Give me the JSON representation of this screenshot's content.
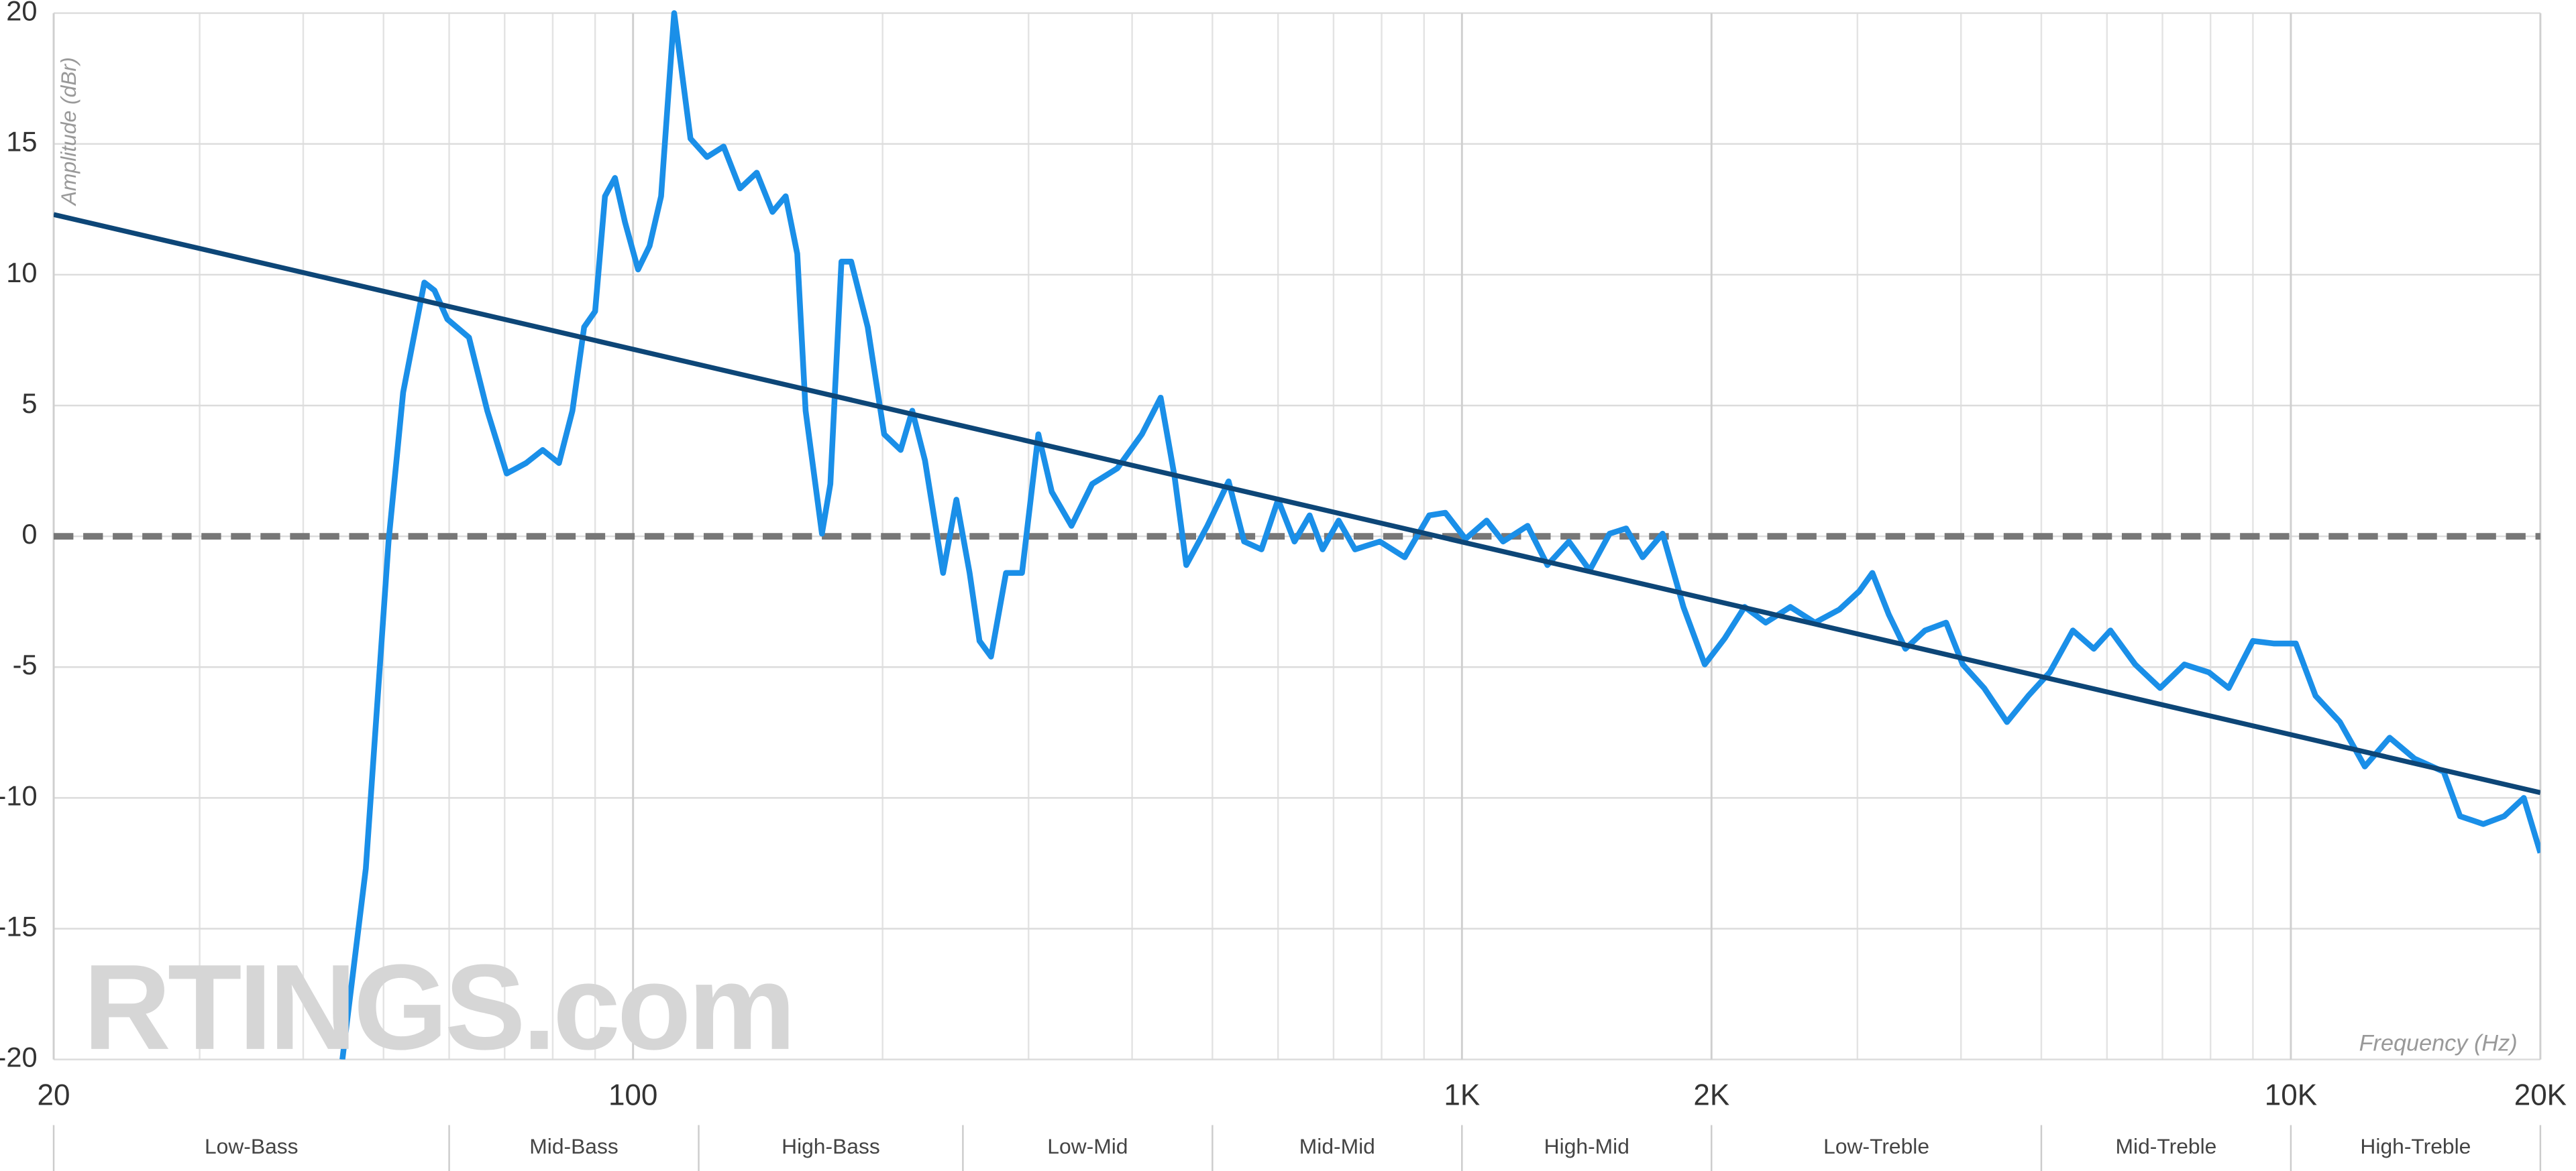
{
  "chart_data": {
    "type": "line",
    "y_label": "Amplitude (dBr)",
    "x_label": "Frequency (Hz)",
    "watermark": "RTINGS.com",
    "xscale": "log",
    "xlim": [
      20,
      20000
    ],
    "ylim": [
      -20,
      20
    ],
    "yticks": [
      -20,
      -15,
      -10,
      -5,
      0,
      5,
      10,
      15,
      20
    ],
    "xticks": [
      20,
      100,
      {
        "value": 1000,
        "label": "1K"
      },
      {
        "value": 2000,
        "label": "2K"
      },
      {
        "value": 10000,
        "label": "10K"
      },
      {
        "value": 20000,
        "label": "20K"
      }
    ],
    "xgrid_minor": [
      30,
      40,
      50,
      60,
      70,
      80,
      90,
      200,
      300,
      400,
      500,
      600,
      700,
      800,
      900,
      3000,
      4000,
      5000,
      6000,
      7000,
      8000,
      9000
    ],
    "grid": true,
    "reference_line": {
      "value": 0,
      "color": "#777777"
    },
    "bands": {
      "edges": [
        20,
        60,
        120,
        250,
        500,
        1000,
        2000,
        5000,
        10000,
        20000
      ],
      "labels": [
        "Low-Bass",
        "Mid-Bass",
        "High-Bass",
        "Low-Mid",
        "Mid-Mid",
        "High-Mid",
        "Low-Treble",
        "Mid-Treble",
        "High-Treble"
      ]
    },
    "series": [
      {
        "color": "#1a8fe8",
        "x": [
          44.6,
          47.6,
          50.7,
          52.8,
          56,
          57.6,
          59.7,
          63.4,
          66.7,
          70.4,
          74.3,
          77.8,
          81.4,
          84.5,
          87.3,
          90,
          92.5,
          95.1,
          97.8,
          101.4,
          104.7,
          108.1,
          112.1,
          117.3,
          122.8,
          128.6,
          134.6,
          141,
          147.3,
          152.8,
          157.8,
          161.5,
          169,
          173,
          178.4,
          183.3,
          191.9,
          200.9,
          210.3,
          217.2,
          225,
          236.6,
          245.5,
          254.7,
          261.8,
          270.3,
          281.8,
          294.6,
          308.3,
          320,
          338,
          358,
          384,
          411,
          433,
          450,
          465,
          493,
          523,
          546,
          573,
          600,
          628,
          655,
          679,
          710,
          743,
          796,
          853,
          913,
          955,
          1010,
          1071,
          1121,
          1200,
          1268,
          1346,
          1426,
          1507,
          1578,
          1652,
          1746,
          1850,
          1963,
          2075,
          2193,
          2325,
          2490,
          2666,
          2853,
          3015,
          3127,
          3274,
          3428,
          3619,
          3838,
          4019,
          4265,
          4545,
          4822,
          5118,
          5458,
          5785,
          6058,
          6490,
          6954,
          7440,
          7963,
          8414,
          9000,
          9549,
          10140,
          10710,
          11460,
          12280,
          13160,
          14100,
          15290,
          16000,
          17070,
          18090,
          19100,
          20000
        ],
        "values": [
          -20,
          -12.7,
          -0.2,
          5.5,
          9.7,
          9.4,
          8.3,
          7.6,
          4.8,
          2.4,
          2.8,
          3.3,
          2.8,
          4.8,
          8,
          8.6,
          13,
          13.7,
          12,
          10.2,
          11.1,
          13,
          20,
          15.2,
          14.5,
          14.9,
          13.3,
          13.9,
          12.4,
          13,
          10.8,
          4.8,
          0.1,
          2,
          10.5,
          10.5,
          8,
          3.9,
          3.3,
          4.8,
          2.9,
          -1.4,
          1.4,
          -1.4,
          -4,
          -4.6,
          -1.4,
          -1.4,
          3.9,
          1.7,
          0.4,
          2,
          2.6,
          3.9,
          5.3,
          2.3,
          -1.1,
          0.4,
          2.1,
          -0.2,
          -0.5,
          1.4,
          -0.2,
          0.8,
          -0.5,
          0.6,
          -0.5,
          -0.2,
          -0.8,
          0.8,
          0.9,
          -0.1,
          0.6,
          -0.2,
          0.4,
          -1.1,
          -0.2,
          -1.3,
          0.1,
          0.3,
          -0.8,
          0.1,
          -2.7,
          -4.9,
          -3.9,
          -2.7,
          -3.3,
          -2.7,
          -3.3,
          -2.8,
          -2.1,
          -1.4,
          -3,
          -4.3,
          -3.6,
          -3.3,
          -4.9,
          -5.8,
          -7.1,
          -6.1,
          -5.2,
          -3.6,
          -4.3,
          -3.6,
          -4.9,
          -5.8,
          -4.9,
          -5.2,
          -5.8,
          -4,
          -4.1,
          -4.1,
          -6.1,
          -7.1,
          -8.8,
          -7.7,
          -8.5,
          -9,
          -10.7,
          -11,
          -10.7,
          -10,
          -12.1
        ]
      },
      {
        "color": "#0d4677",
        "x": [
          20,
          20000
        ],
        "values": [
          12.3,
          -9.8
        ]
      }
    ]
  }
}
